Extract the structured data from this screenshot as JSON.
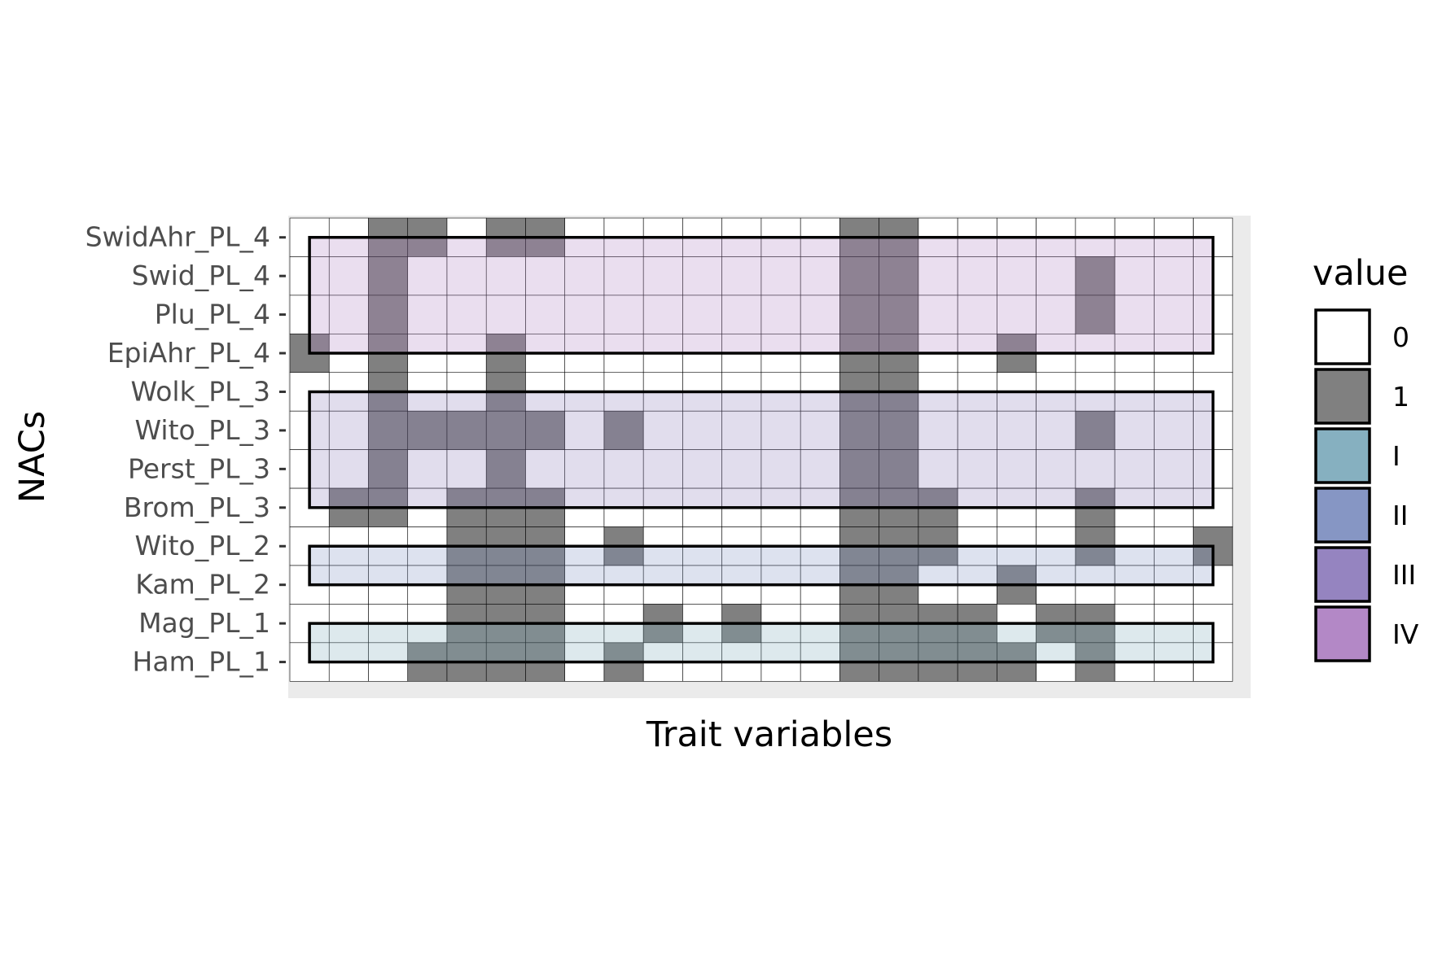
{
  "chart_data": {
    "type": "heatmap",
    "xlabel": "Trait variables",
    "ylabel": "NACs",
    "rows": [
      "SwidAhr_PL_4",
      "Swid_PL_4",
      "Plu_PL_4",
      "EpiAhr_PL_4",
      "Wolk_PL_3",
      "Wito_PL_3",
      "Perst_PL_3",
      "Brom_PL_3",
      "Wito_PL_2",
      "Kam_PL_2",
      "Mag_PL_1",
      "Ham_PL_1"
    ],
    "n_columns": 24,
    "matrix": [
      [
        0,
        0,
        1,
        1,
        0,
        1,
        1,
        0,
        0,
        0,
        0,
        0,
        0,
        0,
        1,
        1,
        0,
        0,
        0,
        0,
        0,
        0,
        0,
        0
      ],
      [
        0,
        0,
        1,
        0,
        0,
        0,
        0,
        0,
        0,
        0,
        0,
        0,
        0,
        0,
        1,
        1,
        0,
        0,
        0,
        0,
        1,
        0,
        0,
        0
      ],
      [
        0,
        0,
        1,
        0,
        0,
        0,
        0,
        0,
        0,
        0,
        0,
        0,
        0,
        0,
        1,
        1,
        0,
        0,
        0,
        0,
        1,
        0,
        0,
        0
      ],
      [
        1,
        0,
        1,
        0,
        0,
        1,
        0,
        0,
        0,
        0,
        0,
        0,
        0,
        0,
        1,
        1,
        0,
        0,
        1,
        0,
        0,
        0,
        0,
        0
      ],
      [
        0,
        0,
        1,
        0,
        0,
        1,
        0,
        0,
        0,
        0,
        0,
        0,
        0,
        0,
        1,
        1,
        0,
        0,
        0,
        0,
        0,
        0,
        0,
        0
      ],
      [
        0,
        0,
        1,
        1,
        1,
        1,
        1,
        0,
        1,
        0,
        0,
        0,
        0,
        0,
        1,
        1,
        0,
        0,
        0,
        0,
        1,
        0,
        0,
        0
      ],
      [
        0,
        0,
        1,
        0,
        0,
        1,
        0,
        0,
        0,
        0,
        0,
        0,
        0,
        0,
        1,
        1,
        0,
        0,
        0,
        0,
        0,
        0,
        0,
        0
      ],
      [
        0,
        1,
        1,
        0,
        1,
        1,
        1,
        0,
        0,
        0,
        0,
        0,
        0,
        0,
        1,
        1,
        1,
        0,
        0,
        0,
        1,
        0,
        0,
        0
      ],
      [
        0,
        0,
        0,
        0,
        1,
        1,
        1,
        0,
        1,
        0,
        0,
        0,
        0,
        0,
        1,
        1,
        1,
        0,
        0,
        0,
        1,
        0,
        0,
        1
      ],
      [
        0,
        0,
        0,
        0,
        1,
        1,
        1,
        0,
        0,
        0,
        0,
        0,
        0,
        0,
        1,
        1,
        0,
        0,
        1,
        0,
        0,
        0,
        0,
        0
      ],
      [
        0,
        0,
        0,
        0,
        1,
        1,
        1,
        0,
        0,
        1,
        0,
        1,
        0,
        0,
        1,
        1,
        1,
        1,
        0,
        1,
        1,
        0,
        0,
        0
      ],
      [
        0,
        0,
        0,
        1,
        1,
        1,
        1,
        0,
        1,
        0,
        0,
        0,
        0,
        0,
        1,
        1,
        1,
        1,
        1,
        0,
        1,
        0,
        0,
        0
      ]
    ],
    "groups": [
      {
        "label": "IV",
        "row_start": 0.5,
        "row_end": 3.5,
        "color": "#b388c6"
      },
      {
        "label": "III",
        "row_start": 4.5,
        "row_end": 7.5,
        "color": "#9584c0"
      },
      {
        "label": "II",
        "row_start": 8.5,
        "row_end": 9.5,
        "color": "#8696c4"
      },
      {
        "label": "I",
        "row_start": 10.5,
        "row_end": 11.5,
        "color": "#86b0c0"
      }
    ],
    "group_col_range": [
      0.5,
      23.5
    ],
    "legend": {
      "title": "value",
      "position": "right",
      "entries": [
        {
          "label": "0",
          "color": "#ffffff"
        },
        {
          "label": "1",
          "color": "#808080"
        },
        {
          "label": "I",
          "color": "#86b0c0"
        },
        {
          "label": "II",
          "color": "#8696c4"
        },
        {
          "label": "III",
          "color": "#9584c0"
        },
        {
          "label": "IV",
          "color": "#b388c6"
        }
      ]
    },
    "colors": {
      "zero": "#ffffff",
      "one": "#808080",
      "panel": "#ebebeb"
    },
    "grid": true
  }
}
